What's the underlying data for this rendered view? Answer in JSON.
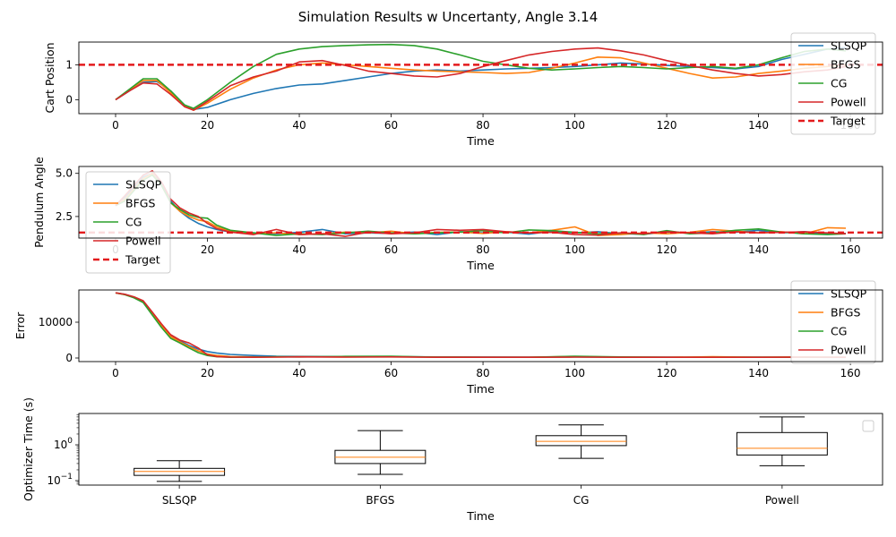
{
  "figure": {
    "suptitle": "Simulation Results w Uncertanty, Angle 3.14"
  },
  "colors": {
    "SLSQP": "#1f77b4",
    "BFGS": "#ff7f0e",
    "CG": "#2ca02c",
    "Powell": "#d62728",
    "Target": "#e31a1c",
    "median": "#ff7f0e"
  },
  "chart_data": [
    {
      "id": "cart",
      "type": "line",
      "title": "",
      "xlabel": "Time",
      "ylabel": "Cart Position",
      "xlim": [
        -8,
        167
      ],
      "ylim": [
        -0.4,
        1.65
      ],
      "xticks": [
        0,
        20,
        40,
        60,
        80,
        100,
        120,
        140,
        160
      ],
      "yticks": [
        0,
        1
      ],
      "legend": {
        "position": "right-top",
        "entries": [
          "SLSQP",
          "BFGS",
          "CG",
          "Powell",
          "Target"
        ]
      },
      "target": 1.0,
      "series": [
        {
          "name": "SLSQP",
          "x": [
            0,
            3,
            6,
            9,
            12,
            15,
            17,
            20,
            25,
            30,
            35,
            40,
            45,
            50,
            55,
            60,
            65,
            70,
            75,
            80,
            85,
            90,
            95,
            100,
            105,
            110,
            115,
            120,
            125,
            130,
            135,
            140,
            145,
            150,
            155,
            159
          ],
          "y": [
            0,
            0.25,
            0.5,
            0.52,
            0.25,
            -0.15,
            -0.28,
            -0.22,
            0.0,
            0.18,
            0.32,
            0.42,
            0.45,
            0.55,
            0.65,
            0.75,
            0.82,
            0.85,
            0.82,
            0.85,
            0.88,
            0.9,
            0.92,
            0.95,
            1.0,
            1.05,
            1.02,
            0.98,
            0.95,
            0.92,
            0.88,
            0.95,
            1.15,
            1.3,
            1.45,
            1.5
          ]
        },
        {
          "name": "BFGS",
          "x": [
            0,
            3,
            6,
            9,
            12,
            15,
            17,
            20,
            25,
            30,
            35,
            40,
            45,
            50,
            55,
            60,
            65,
            70,
            75,
            80,
            85,
            90,
            95,
            100,
            105,
            110,
            115,
            120,
            125,
            130,
            135,
            140,
            145,
            150,
            155,
            159
          ],
          "y": [
            0,
            0.28,
            0.55,
            0.55,
            0.2,
            -0.18,
            -0.3,
            -0.1,
            0.3,
            0.62,
            0.85,
            1.0,
            1.05,
            1.0,
            0.95,
            0.9,
            0.85,
            0.82,
            0.8,
            0.78,
            0.75,
            0.78,
            0.9,
            1.05,
            1.22,
            1.2,
            1.05,
            0.9,
            0.75,
            0.62,
            0.65,
            0.75,
            0.82,
            0.9,
            0.95,
            1.0
          ]
        },
        {
          "name": "CG",
          "x": [
            0,
            3,
            6,
            9,
            12,
            15,
            17,
            20,
            25,
            30,
            35,
            40,
            45,
            50,
            55,
            60,
            65,
            70,
            75,
            80,
            85,
            90,
            95,
            100,
            105,
            110,
            115,
            120,
            125,
            130,
            135,
            140,
            145,
            150,
            155,
            159
          ],
          "y": [
            0,
            0.3,
            0.6,
            0.6,
            0.25,
            -0.15,
            -0.25,
            0.0,
            0.5,
            0.95,
            1.3,
            1.45,
            1.52,
            1.55,
            1.57,
            1.58,
            1.55,
            1.45,
            1.28,
            1.1,
            1.0,
            0.9,
            0.85,
            0.88,
            0.92,
            0.95,
            0.92,
            0.88,
            0.92,
            0.95,
            0.9,
            1.0,
            1.2,
            1.38,
            1.45,
            1.4
          ]
        },
        {
          "name": "Powell",
          "x": [
            0,
            3,
            6,
            9,
            12,
            15,
            17,
            20,
            25,
            30,
            35,
            40,
            45,
            50,
            55,
            60,
            65,
            70,
            75,
            80,
            85,
            90,
            95,
            100,
            105,
            110,
            115,
            120,
            125,
            130,
            135,
            140,
            145,
            150,
            155,
            159
          ],
          "y": [
            0,
            0.25,
            0.48,
            0.45,
            0.15,
            -0.2,
            -0.3,
            -0.05,
            0.4,
            0.65,
            0.82,
            1.08,
            1.12,
            0.98,
            0.82,
            0.75,
            0.68,
            0.65,
            0.75,
            0.95,
            1.12,
            1.28,
            1.38,
            1.45,
            1.48,
            1.4,
            1.28,
            1.12,
            0.98,
            0.85,
            0.75,
            0.68,
            0.72,
            0.8,
            0.85,
            0.95
          ]
        }
      ]
    },
    {
      "id": "angle",
      "type": "line",
      "title": "",
      "xlabel": "Time",
      "ylabel": "Pendulum Angle",
      "xlim": [
        -8,
        167
      ],
      "ylim": [
        1.25,
        5.4
      ],
      "xticks": [
        0,
        20,
        40,
        60,
        80,
        100,
        120,
        140,
        160
      ],
      "yticks": [
        2.5,
        5.0
      ],
      "legend": {
        "position": "left-top",
        "entries": [
          "SLSQP",
          "BFGS",
          "CG",
          "Powell",
          "Target"
        ]
      },
      "target": 1.57,
      "series": [
        {
          "name": "SLSQP",
          "x": [
            0,
            2,
            4,
            6,
            8,
            10,
            12,
            14,
            16,
            18,
            20,
            22,
            25,
            30,
            35,
            40,
            45,
            50,
            55,
            60,
            65,
            70,
            75,
            80,
            85,
            90,
            95,
            100,
            105,
            110,
            115,
            120,
            125,
            130,
            135,
            140,
            145,
            150,
            155,
            159
          ],
          "y": [
            3.14,
            3.6,
            4.2,
            4.8,
            5.0,
            4.4,
            3.4,
            2.8,
            2.4,
            2.1,
            1.9,
            1.75,
            1.6,
            1.55,
            1.5,
            1.58,
            1.75,
            1.5,
            1.55,
            1.52,
            1.6,
            1.45,
            1.62,
            1.55,
            1.6,
            1.48,
            1.65,
            1.55,
            1.62,
            1.5,
            1.48,
            1.6,
            1.55,
            1.62,
            1.58,
            1.7,
            1.55,
            1.62,
            1.48,
            1.52
          ]
        },
        {
          "name": "BFGS",
          "x": [
            0,
            2,
            4,
            6,
            8,
            10,
            12,
            14,
            16,
            18,
            20,
            22,
            25,
            30,
            35,
            40,
            45,
            50,
            55,
            60,
            65,
            70,
            75,
            80,
            85,
            90,
            95,
            100,
            105,
            110,
            115,
            120,
            125,
            130,
            135,
            140,
            145,
            150,
            155,
            159
          ],
          "y": [
            3.14,
            3.5,
            4.1,
            4.7,
            5.0,
            4.3,
            3.3,
            2.8,
            2.5,
            2.3,
            2.2,
            1.9,
            1.65,
            1.5,
            1.55,
            1.45,
            1.5,
            1.6,
            1.55,
            1.65,
            1.5,
            1.58,
            1.6,
            1.52,
            1.62,
            1.55,
            1.7,
            1.9,
            1.4,
            1.45,
            1.55,
            1.5,
            1.58,
            1.75,
            1.65,
            1.55,
            1.62,
            1.5,
            1.85,
            1.82
          ]
        },
        {
          "name": "CG",
          "x": [
            0,
            2,
            4,
            6,
            8,
            10,
            12,
            14,
            16,
            18,
            20,
            22,
            25,
            30,
            35,
            40,
            45,
            50,
            55,
            60,
            65,
            70,
            75,
            80,
            85,
            90,
            95,
            100,
            105,
            110,
            115,
            120,
            125,
            130,
            135,
            140,
            145,
            150,
            155,
            159
          ],
          "y": [
            3.14,
            3.4,
            4.0,
            4.6,
            4.9,
            4.3,
            3.3,
            2.9,
            2.6,
            2.45,
            2.4,
            2.0,
            1.7,
            1.55,
            1.4,
            1.5,
            1.45,
            1.55,
            1.65,
            1.55,
            1.5,
            1.55,
            1.6,
            1.68,
            1.55,
            1.72,
            1.68,
            1.58,
            1.5,
            1.55,
            1.45,
            1.68,
            1.5,
            1.55,
            1.7,
            1.78,
            1.6,
            1.5,
            1.45,
            1.5
          ]
        },
        {
          "name": "Powell",
          "x": [
            0,
            2,
            4,
            6,
            8,
            10,
            12,
            14,
            16,
            18,
            20,
            22,
            25,
            30,
            35,
            40,
            45,
            50,
            55,
            60,
            65,
            70,
            75,
            80,
            85,
            90,
            95,
            100,
            105,
            110,
            115,
            120,
            125,
            130,
            135,
            140,
            145,
            150,
            155,
            159
          ],
          "y": [
            3.14,
            3.7,
            4.3,
            4.9,
            5.15,
            4.5,
            3.5,
            3.0,
            2.7,
            2.5,
            2.1,
            1.8,
            1.6,
            1.45,
            1.75,
            1.45,
            1.5,
            1.35,
            1.6,
            1.5,
            1.55,
            1.75,
            1.7,
            1.75,
            1.62,
            1.55,
            1.58,
            1.45,
            1.42,
            1.55,
            1.5,
            1.62,
            1.55,
            1.5,
            1.62,
            1.55,
            1.58,
            1.62,
            1.55,
            1.5
          ]
        }
      ]
    },
    {
      "id": "error",
      "type": "line",
      "title": "",
      "xlabel": "Time",
      "ylabel": "Error",
      "xlim": [
        -8,
        167
      ],
      "ylim": [
        -1000,
        19000
      ],
      "xticks": [
        0,
        20,
        40,
        60,
        80,
        100,
        120,
        140,
        160
      ],
      "yticks": [
        0,
        10000
      ],
      "legend": {
        "position": "right-top",
        "entries": [
          "SLSQP",
          "BFGS",
          "CG",
          "Powell"
        ]
      },
      "series": [
        {
          "name": "SLSQP",
          "x": [
            0,
            2,
            4,
            6,
            8,
            10,
            12,
            14,
            16,
            18,
            20,
            22,
            25,
            30,
            35,
            40,
            50,
            60,
            70,
            80,
            90,
            100,
            110,
            120,
            130,
            140,
            150,
            159
          ],
          "y": [
            18200,
            17800,
            17000,
            15800,
            12500,
            9200,
            6200,
            4800,
            3500,
            2500,
            1800,
            1400,
            1000,
            700,
            500,
            450,
            400,
            350,
            300,
            280,
            250,
            300,
            250,
            220,
            200,
            200,
            200,
            180
          ]
        },
        {
          "name": "BFGS",
          "x": [
            0,
            2,
            4,
            6,
            8,
            10,
            12,
            14,
            16,
            18,
            20,
            22,
            25,
            30,
            35,
            40,
            50,
            60,
            70,
            80,
            90,
            100,
            110,
            120,
            130,
            140,
            150,
            159
          ],
          "y": [
            18200,
            17700,
            16900,
            15600,
            12200,
            9000,
            6000,
            4500,
            3200,
            2000,
            1100,
            700,
            400,
            300,
            300,
            350,
            300,
            350,
            250,
            200,
            200,
            400,
            250,
            200,
            350,
            200,
            300,
            200
          ]
        },
        {
          "name": "CG",
          "x": [
            0,
            2,
            4,
            6,
            8,
            10,
            12,
            14,
            16,
            18,
            20,
            22,
            25,
            30,
            35,
            40,
            50,
            60,
            70,
            80,
            90,
            100,
            110,
            120,
            130,
            140,
            150,
            159
          ],
          "y": [
            18200,
            17700,
            16800,
            15500,
            12000,
            8500,
            5500,
            4200,
            2800,
            1500,
            700,
            350,
            200,
            250,
            350,
            300,
            450,
            500,
            250,
            200,
            200,
            500,
            300,
            200,
            200,
            250,
            200,
            200
          ]
        },
        {
          "name": "Powell",
          "x": [
            0,
            2,
            4,
            6,
            8,
            10,
            12,
            14,
            16,
            18,
            20,
            22,
            25,
            30,
            35,
            40,
            50,
            60,
            70,
            80,
            90,
            100,
            110,
            120,
            130,
            140,
            150,
            159
          ],
          "y": [
            18200,
            17800,
            17100,
            16000,
            12800,
            9500,
            6500,
            5000,
            4200,
            2800,
            900,
            400,
            250,
            200,
            250,
            300,
            250,
            300,
            200,
            200,
            200,
            250,
            200,
            200,
            200,
            200,
            250,
            200
          ]
        }
      ]
    },
    {
      "id": "opttime",
      "type": "box",
      "title": "",
      "xlabel": "Time",
      "ylabel": "Optimizer Time (s)",
      "yscale": "log",
      "ylim": [
        0.075,
        7.5
      ],
      "yticks": [
        {
          "value": 0.1,
          "label": "10",
          "exp": "−1"
        },
        {
          "value": 1,
          "label": "10",
          "exp": "0"
        }
      ],
      "categories": [
        "SLSQP",
        "BFGS",
        "CG",
        "Powell"
      ],
      "boxes": [
        {
          "name": "SLSQP",
          "whislo": 0.095,
          "q1": 0.14,
          "med": 0.18,
          "q3": 0.22,
          "whishi": 0.36
        },
        {
          "name": "BFGS",
          "whislo": 0.15,
          "q1": 0.3,
          "med": 0.45,
          "q3": 0.7,
          "whishi": 2.5
        },
        {
          "name": "CG",
          "whislo": 0.42,
          "q1": 0.95,
          "med": 1.25,
          "q3": 1.8,
          "whishi": 3.6
        },
        {
          "name": "Powell",
          "whislo": 0.26,
          "q1": 0.52,
          "med": 0.8,
          "q3": 2.2,
          "whishi": 6.0
        }
      ],
      "legend": {
        "position": "right-top",
        "entries": []
      }
    }
  ]
}
